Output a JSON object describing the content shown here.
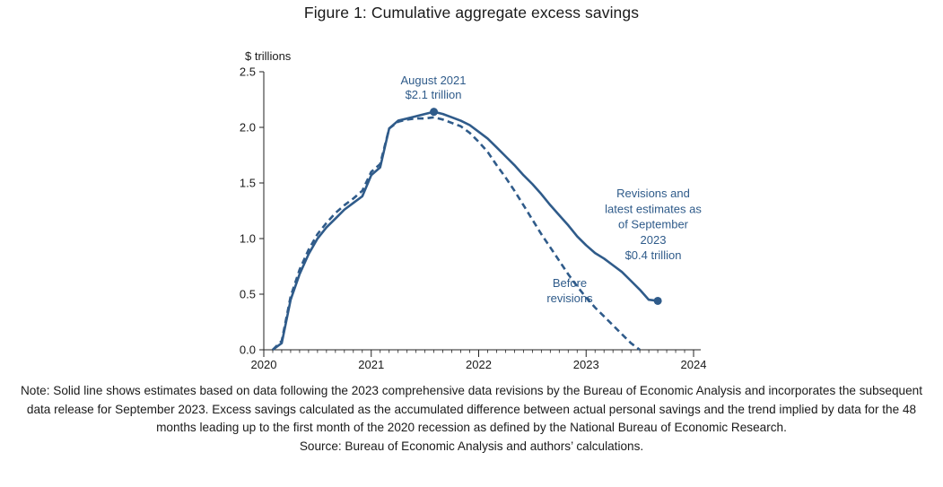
{
  "chart_data": {
    "type": "line",
    "title": "Figure 1: Cumulative aggregate excess savings",
    "ylabel": "$ trillions",
    "xlabel": "",
    "xlim": [
      2020,
      2024
    ],
    "ylim": [
      0,
      2.5
    ],
    "x_ticks": [
      2020,
      2021,
      2022,
      2023,
      2024
    ],
    "y_ticks": [
      0.0,
      0.5,
      1.0,
      1.5,
      2.0,
      2.5
    ],
    "x_tick_labels": [
      "2020",
      "2021",
      "2022",
      "2023",
      "2024"
    ],
    "y_tick_labels": [
      "0.0",
      "0.5",
      "1.0",
      "1.5",
      "2.0",
      "2.5"
    ],
    "grid": false,
    "color": "#2f5b8a",
    "series": [
      {
        "style": "solid",
        "x": [
          2020.083,
          2020.167,
          2020.25,
          2020.333,
          2020.417,
          2020.5,
          2020.583,
          2020.667,
          2020.75,
          2020.833,
          2020.917,
          2021.0,
          2021.083,
          2021.167,
          2021.25,
          2021.333,
          2021.417,
          2021.5,
          2021.583,
          2021.667,
          2021.75,
          2021.833,
          2021.917,
          2022.0,
          2022.083,
          2022.167,
          2022.25,
          2022.333,
          2022.417,
          2022.5,
          2022.583,
          2022.667,
          2022.75,
          2022.833,
          2022.917,
          2023.0,
          2023.083,
          2023.167,
          2023.25,
          2023.333,
          2023.417,
          2023.5,
          2023.583,
          2023.667
        ],
        "values": [
          0.0,
          0.06,
          0.45,
          0.68,
          0.86,
          1.0,
          1.1,
          1.18,
          1.26,
          1.32,
          1.38,
          1.57,
          1.64,
          1.99,
          2.06,
          2.08,
          2.1,
          2.12,
          2.14,
          2.12,
          2.09,
          2.06,
          2.02,
          1.96,
          1.9,
          1.82,
          1.74,
          1.66,
          1.57,
          1.49,
          1.4,
          1.3,
          1.21,
          1.12,
          1.02,
          0.94,
          0.87,
          0.82,
          0.76,
          0.7,
          0.62,
          0.54,
          0.45,
          0.44
        ]
      },
      {
        "style": "dashed",
        "x": [
          2020.083,
          2020.167,
          2020.25,
          2020.333,
          2020.417,
          2020.5,
          2020.583,
          2020.667,
          2020.75,
          2020.833,
          2020.917,
          2021.0,
          2021.083,
          2021.167,
          2021.25,
          2021.333,
          2021.417,
          2021.5,
          2021.583,
          2021.667,
          2021.75,
          2021.833,
          2021.917,
          2022.0,
          2022.083,
          2022.167,
          2022.25,
          2022.333,
          2022.417,
          2022.5,
          2022.583,
          2022.667,
          2022.75,
          2022.833,
          2022.917,
          2023.0,
          2023.083,
          2023.167,
          2023.25,
          2023.333,
          2023.417,
          2023.5
        ],
        "values": [
          0.0,
          0.08,
          0.48,
          0.72,
          0.9,
          1.04,
          1.14,
          1.23,
          1.3,
          1.36,
          1.43,
          1.6,
          1.67,
          1.99,
          2.05,
          2.07,
          2.08,
          2.08,
          2.09,
          2.07,
          2.04,
          2.01,
          1.95,
          1.87,
          1.78,
          1.66,
          1.55,
          1.43,
          1.3,
          1.17,
          1.04,
          0.92,
          0.8,
          0.68,
          0.57,
          0.47,
          0.38,
          0.3,
          0.22,
          0.14,
          0.06,
          0.0
        ]
      }
    ],
    "markers": [
      {
        "x": 2021.583,
        "y": 2.14
      },
      {
        "x": 2023.667,
        "y": 0.44
      }
    ],
    "annotations": [
      {
        "lines": [
          "August 2021",
          "$2.1 trillion"
        ]
      },
      {
        "lines": [
          "Revisions and",
          "latest estimates as",
          "of September",
          "2023",
          "$0.4 trillion"
        ]
      },
      {
        "lines": [
          "Before",
          "revisions"
        ]
      }
    ]
  },
  "note": {
    "text": "Note: Solid line shows estimates based on data following the 2023 comprehensive data revisions by the Bureau of Economic Analysis and incorporates the subsequent data release for September 2023. Excess savings calculated as the accumulated difference between actual personal savings and the trend implied by data for the 48 months leading up to the first month of the 2020 recession as defined by the National Bureau of Economic Research.",
    "source": "Source: Bureau of Economic Analysis and authors’ calculations."
  }
}
